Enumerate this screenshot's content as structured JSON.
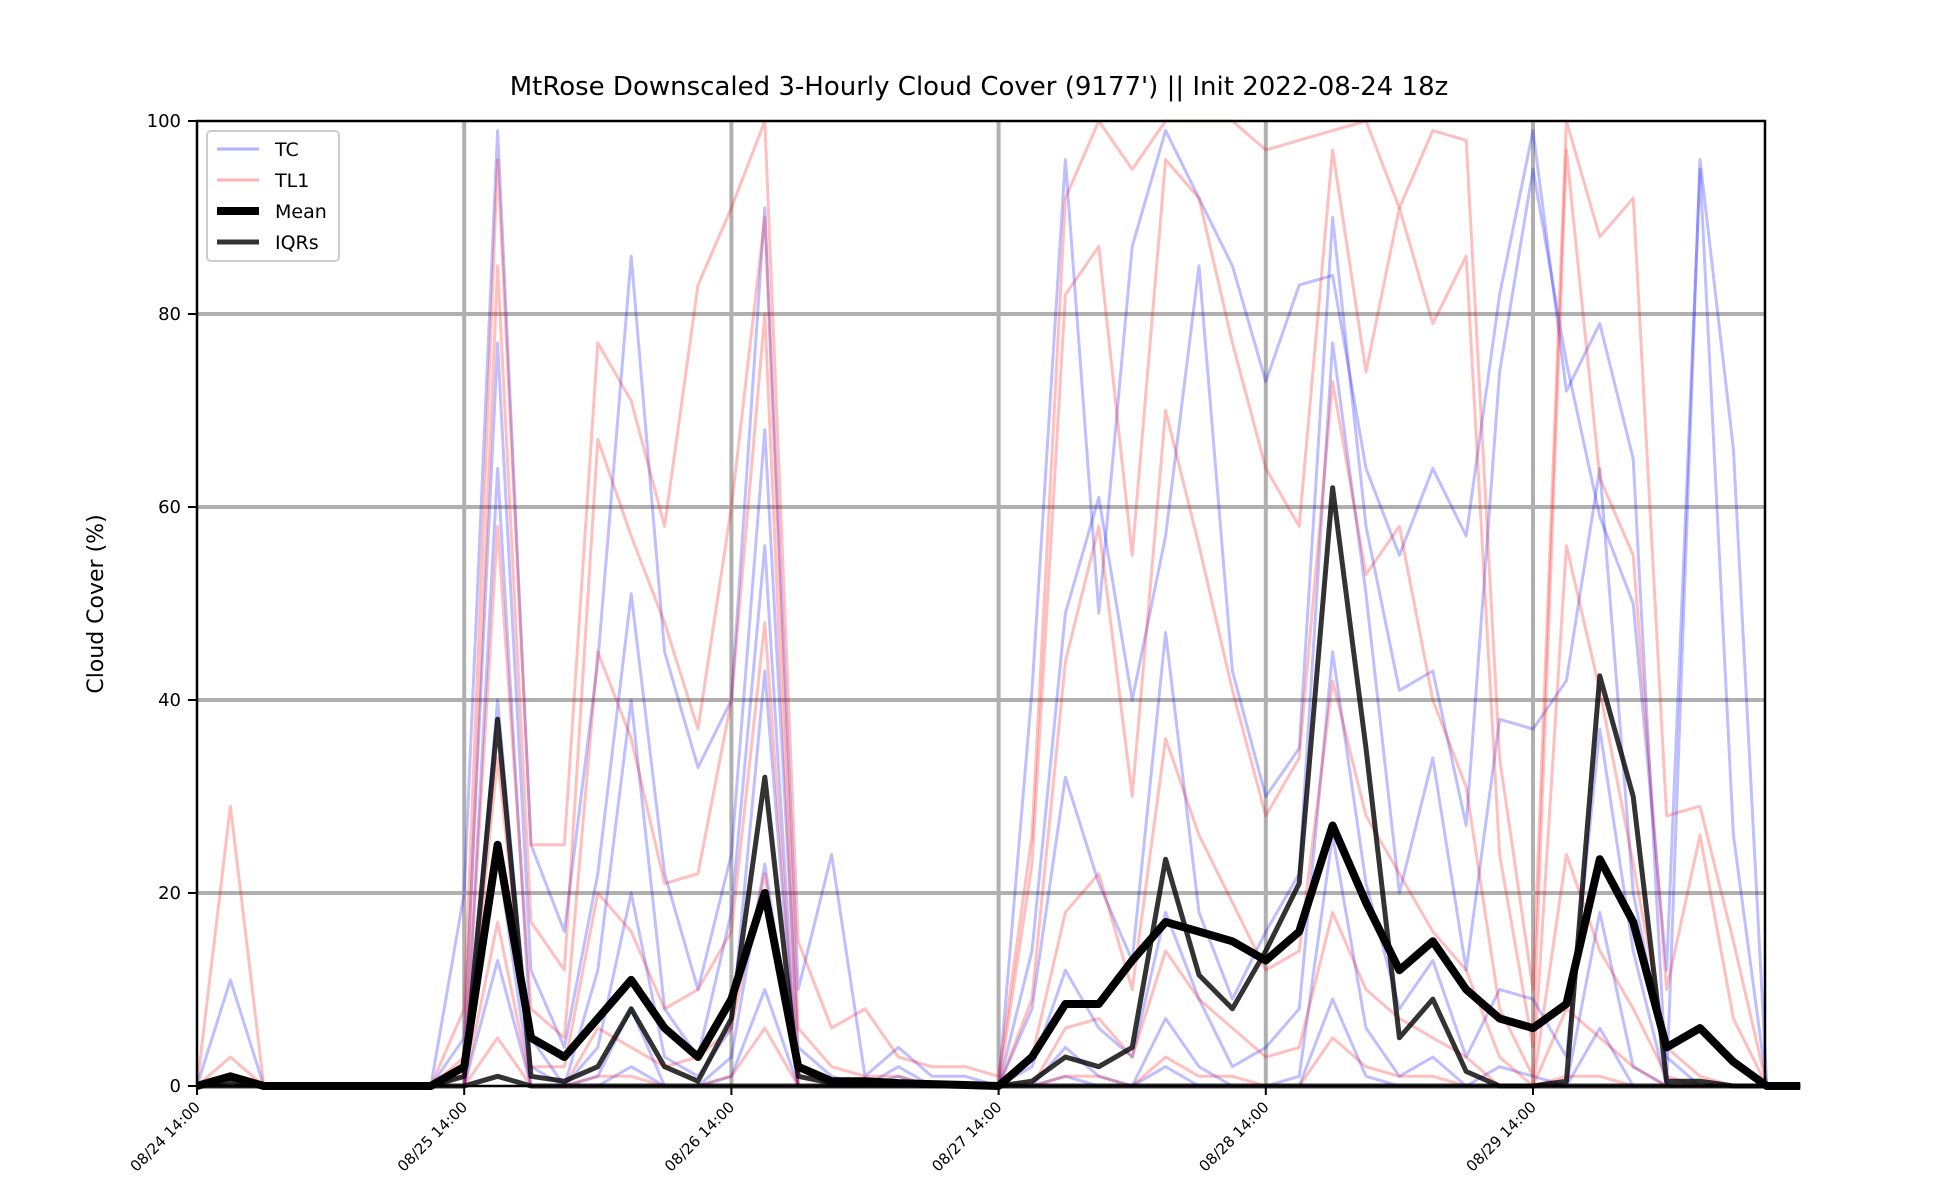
{
  "chart_data": {
    "type": "line",
    "title": "MtRose Downscaled 3-Hourly Cloud Cover (9177') || Init 2022-08-24 18z",
    "xlabel": "",
    "ylabel": "Cloud Cover (%)",
    "ylim": [
      0,
      100
    ],
    "yticks": [
      0,
      20,
      40,
      60,
      80,
      100
    ],
    "x_start": "08/24 14:00",
    "x_step_hours": 3,
    "x_tick_labels": [
      "08/24 14:00",
      "08/25 14:00",
      "08/26 14:00",
      "08/27 14:00",
      "08/28 14:00",
      "08/29 14:00"
    ],
    "grid": true,
    "legend_position": "upper-left",
    "legend": [
      {
        "label": "TC",
        "color": "#0000ff",
        "style": "thin-transparent"
      },
      {
        "label": "TL1",
        "color": "#ff0000",
        "style": "thin-transparent"
      },
      {
        "label": "Mean",
        "color": "#000000",
        "style": "thick"
      },
      {
        "label": "IQRs",
        "color": "#000000",
        "style": "medium-transparent"
      }
    ],
    "mean": [
      0,
      1,
      0,
      0,
      0,
      0,
      0,
      0,
      2,
      25,
      5,
      3,
      7,
      11,
      6,
      3,
      9,
      20,
      2,
      0.5,
      0.5,
      0.3,
      0.2,
      0.1,
      0,
      3,
      8.5,
      8.5,
      13,
      17,
      16,
      15,
      13,
      16,
      27,
      19,
      12,
      15,
      10,
      7,
      6,
      8.5,
      23.5,
      17,
      4,
      6,
      2.5,
      0,
      0
    ],
    "iqr_upper": [
      0,
      0.5,
      0,
      0,
      0,
      0,
      0,
      0,
      1,
      38,
      1,
      0.5,
      2,
      8,
      2,
      0.5,
      7,
      32,
      1,
      0.3,
      0.2,
      0.1,
      0.1,
      0,
      0,
      0.5,
      3,
      2,
      4,
      23.5,
      11.5,
      8,
      14,
      21,
      62,
      35,
      5,
      9,
      1.5,
      0,
      0,
      0.5,
      42.5,
      30,
      0.5,
      0.5,
      0,
      0,
      0
    ],
    "iqr_lower": [
      0,
      0,
      0,
      0,
      0,
      0,
      0,
      0,
      0,
      1,
      0,
      0,
      0,
      0,
      0,
      0,
      0,
      0,
      0,
      0,
      0,
      0,
      0,
      0,
      0,
      0,
      0,
      0,
      0,
      0,
      0,
      0,
      0,
      0,
      0,
      0,
      0,
      0,
      0,
      0,
      0,
      0,
      0,
      0,
      0,
      0,
      0,
      0,
      0
    ],
    "ensemble": [
      {
        "model": "TC",
        "values": [
          0,
          11,
          0,
          0,
          0,
          0,
          0,
          0,
          20,
          99,
          25,
          16,
          44,
          86,
          45,
          33,
          40,
          91,
          10,
          24,
          1,
          4,
          1,
          1,
          0,
          41,
          96,
          49,
          87,
          99,
          92,
          85,
          73,
          83,
          84,
          64,
          55,
          64,
          57,
          82,
          99,
          72,
          79,
          65,
          0,
          96,
          66,
          0,
          0
        ]
      },
      {
        "model": "TC",
        "values": [
          0,
          0,
          0,
          0,
          0,
          0,
          0,
          0,
          5,
          77,
          12,
          4,
          22,
          51,
          22,
          10,
          24,
          68,
          4,
          1,
          0,
          1,
          0,
          0,
          0,
          14,
          49,
          61,
          40,
          57,
          85,
          43,
          30,
          35,
          90,
          58,
          41,
          43,
          27,
          74,
          95,
          75,
          59,
          50,
          12,
          95,
          26,
          0,
          0
        ]
      },
      {
        "model": "TC",
        "values": [
          0,
          0,
          0,
          0,
          0,
          0,
          0,
          0,
          0,
          64,
          5,
          0,
          12,
          40,
          8,
          3,
          18,
          56,
          0,
          0,
          0,
          2,
          0,
          0,
          0,
          8,
          32,
          21,
          13,
          47,
          18,
          9,
          16,
          22,
          77,
          51,
          20,
          34,
          12,
          38,
          37,
          42,
          64,
          20,
          3,
          0,
          0,
          0,
          0
        ]
      },
      {
        "model": "TC",
        "values": [
          0,
          0,
          0,
          0,
          0,
          0,
          0,
          0,
          0,
          40,
          2,
          0,
          4,
          20,
          3,
          1,
          6,
          43,
          0,
          0,
          0,
          0,
          0,
          0,
          0,
          2,
          12,
          6,
          3,
          18,
          9,
          2,
          4,
          8,
          45,
          21,
          8,
          13,
          3,
          10,
          9,
          3,
          37,
          14,
          0,
          0,
          0,
          0,
          0
        ]
      },
      {
        "model": "TC",
        "values": [
          0,
          0,
          0,
          0,
          0,
          0,
          0,
          0,
          0,
          24,
          0,
          0,
          1,
          8,
          0,
          0,
          3,
          23,
          0,
          0,
          0,
          0,
          0,
          0,
          0,
          0,
          4,
          1,
          0,
          7,
          2,
          0,
          0,
          1,
          26,
          6,
          1,
          3,
          0,
          2,
          1,
          0,
          18,
          2,
          0,
          0,
          0,
          0,
          0
        ]
      },
      {
        "model": "TC",
        "values": [
          0,
          0,
          0,
          0,
          0,
          0,
          0,
          0,
          0,
          13,
          0,
          0,
          0,
          2,
          0,
          0,
          1,
          10,
          0,
          0,
          0,
          0,
          0,
          0,
          0,
          0,
          1,
          0,
          0,
          2,
          0,
          0,
          0,
          0,
          9,
          1,
          0,
          0,
          0,
          0,
          0,
          0,
          6,
          0,
          0,
          0,
          0,
          0,
          0
        ]
      },
      {
        "model": "TL1",
        "values": [
          0,
          29,
          0,
          0,
          0,
          0,
          0,
          0,
          8,
          96,
          25,
          25,
          77,
          71,
          58,
          83,
          91,
          100,
          15,
          6,
          8,
          3,
          2,
          2,
          1,
          26,
          92,
          100,
          95,
          100,
          100,
          100,
          97,
          98,
          99,
          100,
          91,
          99,
          98,
          34,
          10,
          100,
          88,
          92,
          28,
          29,
          15,
          0,
          0
        ]
      },
      {
        "model": "TL1",
        "values": [
          0,
          3,
          0,
          0,
          0,
          0,
          0,
          0,
          3,
          85,
          17,
          12,
          67,
          57,
          48,
          37,
          60,
          90,
          6,
          2,
          1,
          1,
          0,
          0,
          0,
          23,
          82,
          87,
          55,
          96,
          92,
          77,
          64,
          58,
          97,
          74,
          91,
          79,
          86,
          24,
          4,
          97,
          63,
          55,
          10,
          26,
          7,
          0,
          0
        ]
      },
      {
        "model": "TL1",
        "values": [
          0,
          1,
          0,
          0,
          0,
          0,
          0,
          0,
          1,
          58,
          8,
          5,
          45,
          36,
          21,
          22,
          40,
          80,
          2,
          0,
          0,
          0,
          0,
          0,
          0,
          9,
          44,
          58,
          30,
          70,
          56,
          41,
          28,
          34,
          73,
          53,
          58,
          40,
          31,
          8,
          1,
          56,
          41,
          23,
          4,
          1,
          0,
          0,
          0
        ]
      },
      {
        "model": "TL1",
        "values": [
          0,
          0,
          0,
          0,
          0,
          0,
          0,
          0,
          0,
          34,
          2,
          2,
          20,
          16,
          8,
          10,
          16,
          48,
          0,
          0,
          0,
          0,
          0,
          0,
          0,
          3,
          18,
          22,
          10,
          36,
          26,
          19,
          12,
          14,
          42,
          28,
          22,
          16,
          12,
          3,
          0,
          24,
          14,
          8,
          1,
          0,
          0,
          0,
          0
        ]
      },
      {
        "model": "TL1",
        "values": [
          0,
          0,
          0,
          0,
          0,
          0,
          0,
          0,
          0,
          17,
          0,
          0,
          6,
          4,
          2,
          3,
          6,
          22,
          0,
          0,
          0,
          0,
          0,
          0,
          0,
          0,
          6,
          7,
          3,
          14,
          9,
          6,
          3,
          4,
          18,
          10,
          7,
          5,
          3,
          0,
          0,
          8,
          5,
          2,
          0,
          0,
          0,
          0,
          0
        ]
      },
      {
        "model": "TL1",
        "values": [
          0,
          0,
          0,
          0,
          0,
          0,
          0,
          0,
          0,
          5,
          0,
          0,
          1,
          1,
          0,
          0,
          1,
          6,
          0,
          0,
          0,
          0,
          0,
          0,
          0,
          0,
          1,
          1,
          0,
          3,
          1,
          1,
          0,
          0,
          5,
          2,
          1,
          1,
          0,
          0,
          0,
          1,
          1,
          0,
          0,
          0,
          0,
          0,
          0
        ]
      }
    ]
  }
}
